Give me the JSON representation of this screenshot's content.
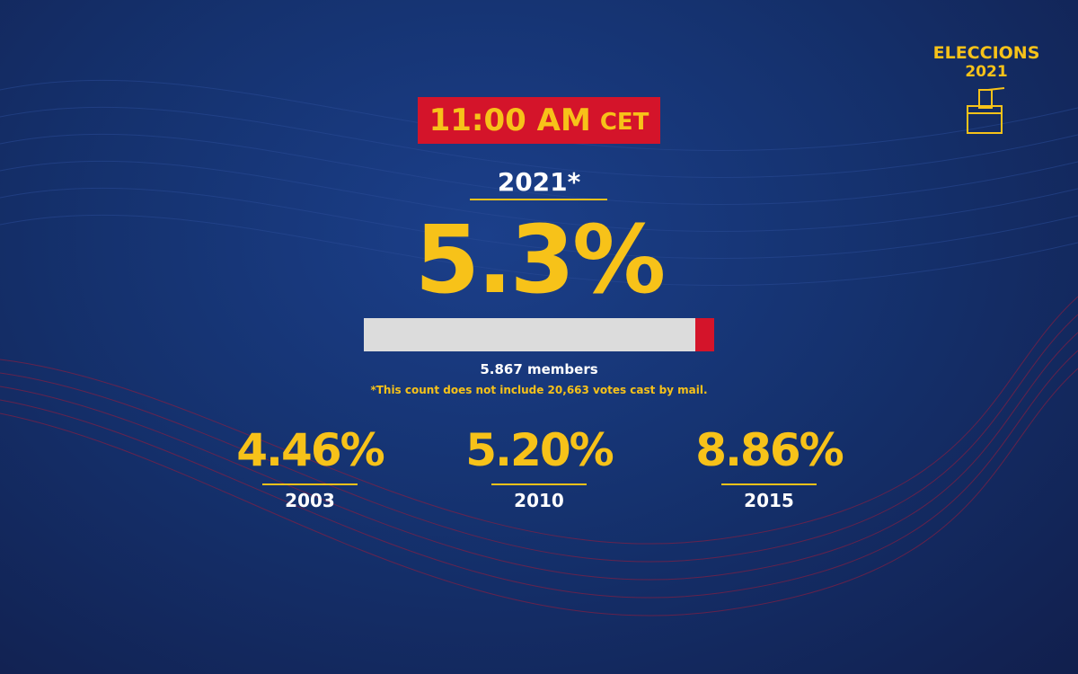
{
  "brand": {
    "line1": "ELECCIONS",
    "line2": "2021"
  },
  "badge": {
    "time": "11:00 AM",
    "zone": "CET"
  },
  "current": {
    "year": "2021*",
    "percent": {
      "value": 5.3,
      "label": "5.3%"
    },
    "xlim": [
      0,
      100
    ],
    "members": "5.867 members",
    "note": "*This count does not include 20,663 votes cast by mail."
  },
  "history": [
    {
      "value": "4.46%",
      "year": "2003"
    },
    {
      "value": "5.20%",
      "year": "2010"
    },
    {
      "value": "8.86%",
      "year": "2015"
    }
  ]
}
